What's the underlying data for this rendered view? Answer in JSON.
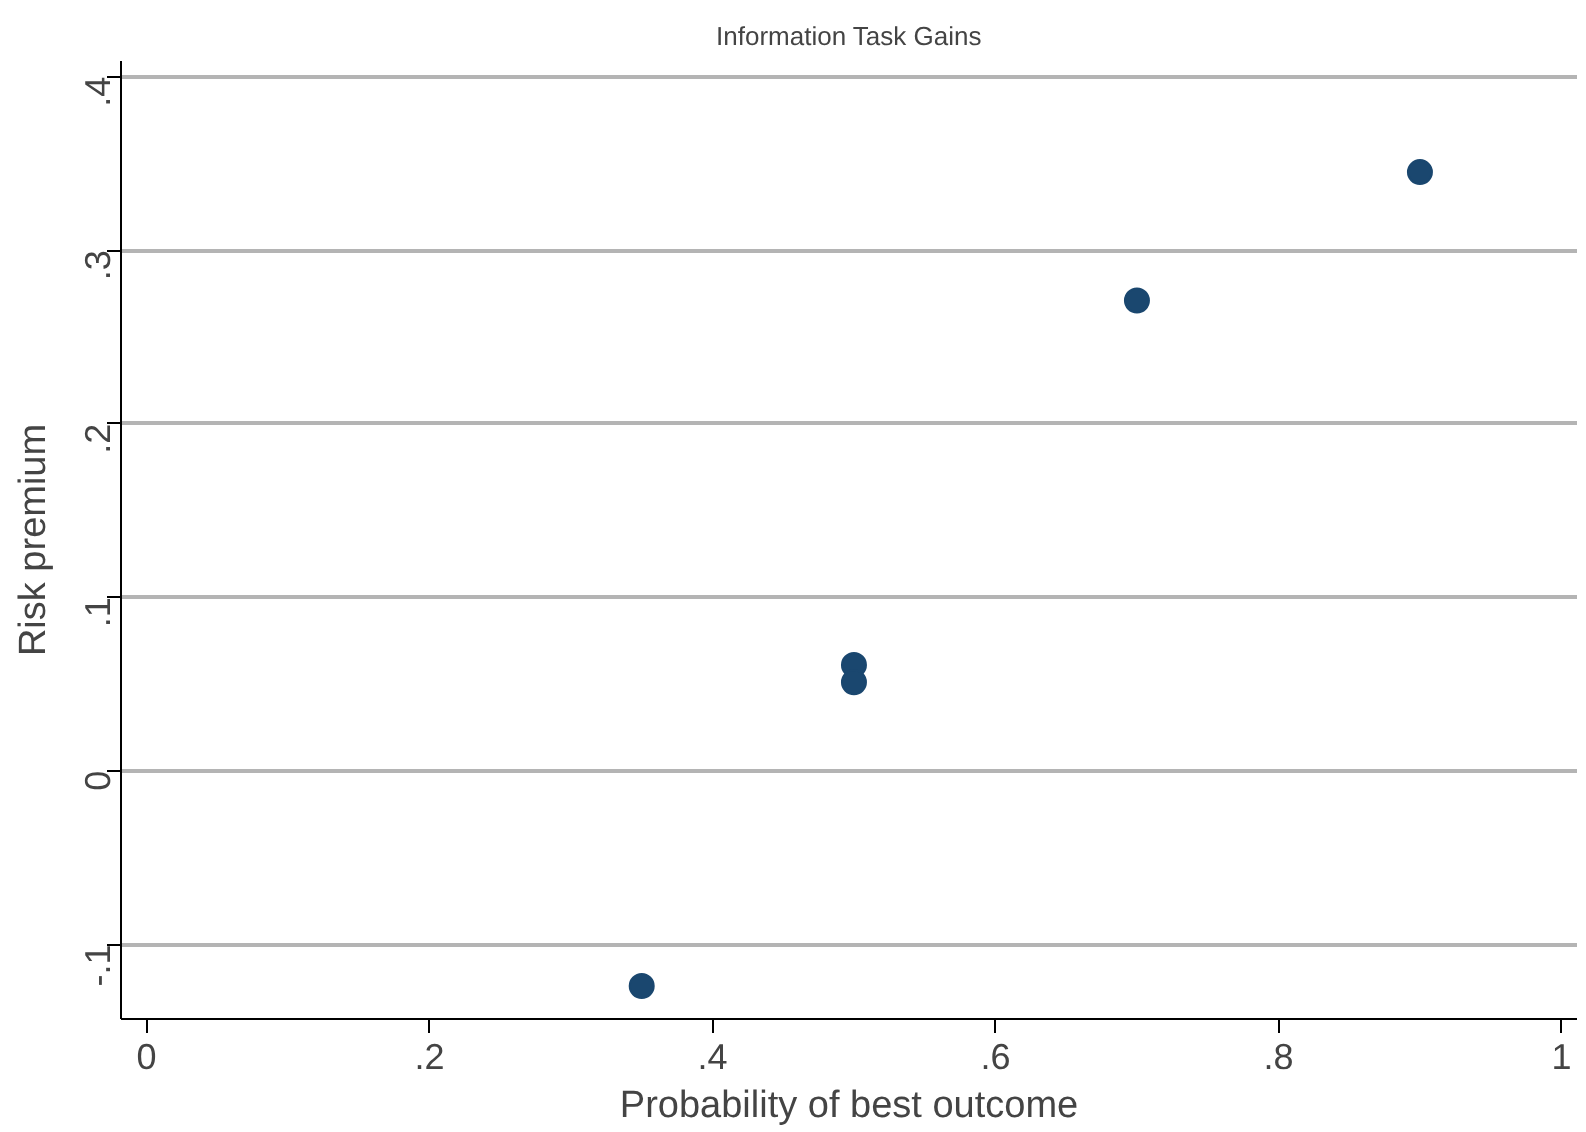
{
  "chart_data": {
    "type": "scatter",
    "title": "Information Task Gains",
    "xlabel": "Probability of best outcome",
    "ylabel": "Risk premium",
    "x": [
      0.35,
      0.5,
      0.5,
      0.7,
      0.9
    ],
    "series": [
      {
        "color": "#1a476f",
        "values": [
          -0.124,
          0.061,
          0.051,
          0.271,
          0.345
        ]
      }
    ],
    "xlim": [
      -0.018,
      1.011
    ],
    "ylim": [
      -0.143,
      0.409
    ],
    "xticks": [
      {
        "value": 0,
        "label": "0"
      },
      {
        "value": 0.2,
        "label": ".2"
      },
      {
        "value": 0.4,
        "label": ".4"
      },
      {
        "value": 0.6,
        "label": ".6"
      },
      {
        "value": 0.8,
        "label": ".8"
      },
      {
        "value": 1,
        "label": "1"
      }
    ],
    "yticks": [
      {
        "value": -0.1,
        "label": "-.1"
      },
      {
        "value": 0,
        "label": "0"
      },
      {
        "value": 0.1,
        "label": ".1"
      },
      {
        "value": 0.2,
        "label": ".2"
      },
      {
        "value": 0.3,
        "label": ".3"
      },
      {
        "value": 0.4,
        "label": ".4"
      }
    ],
    "grid": "y",
    "marker": "circle"
  }
}
